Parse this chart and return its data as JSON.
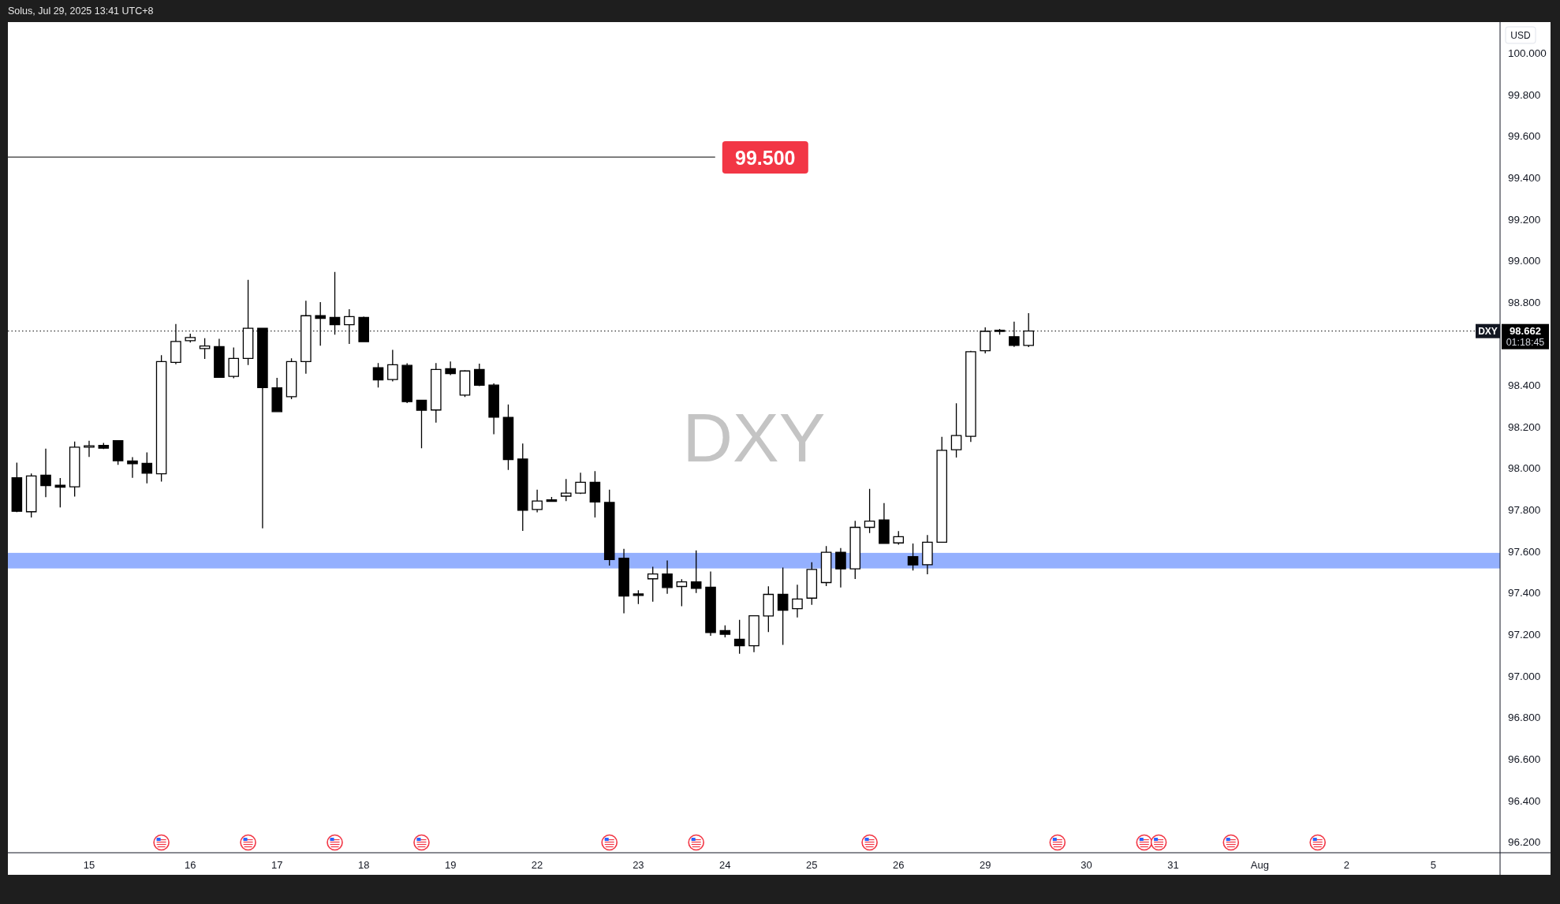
{
  "chart_data": {
    "type": "candlestick",
    "title": "DXY",
    "ylabel": "USD",
    "color": "#000000",
    "categories": [
      null,
      null,
      null,
      null,
      null,
      "15",
      null,
      null,
      null,
      null,
      null,
      null,
      "16",
      null,
      null,
      null,
      null,
      null,
      "17",
      null,
      null,
      null,
      null,
      null,
      "18",
      null,
      null,
      null,
      null,
      null,
      "19",
      null,
      null,
      null,
      null,
      null,
      "22",
      null,
      null,
      null,
      null,
      null,
      null,
      "23",
      null,
      null,
      null,
      null,
      null,
      "24",
      null,
      null,
      null,
      null,
      null,
      "25",
      null,
      null,
      null,
      null,
      null,
      "26",
      null,
      null,
      null,
      null,
      null,
      "29",
      null,
      null,
      null,
      null,
      null,
      null,
      "30",
      null,
      null,
      null,
      null,
      null,
      "31",
      null,
      null,
      null,
      null,
      null,
      "Aug",
      null,
      null,
      null,
      null,
      null,
      "2",
      null,
      null,
      null,
      null,
      null,
      "5",
      null,
      null,
      null,
      null
    ],
    "ohlc": [
      [
        97.956,
        98.028,
        97.79,
        97.794
      ],
      [
        97.792,
        97.976,
        97.764,
        97.964
      ],
      [
        97.968,
        98.096,
        97.862,
        97.918
      ],
      [
        97.92,
        97.954,
        97.813,
        97.91
      ],
      [
        97.912,
        98.13,
        97.865,
        98.103
      ],
      [
        98.103,
        98.134,
        98.056,
        98.11
      ],
      [
        98.111,
        98.123,
        98.094,
        98.098
      ],
      [
        98.134,
        98.134,
        98.018,
        98.038
      ],
      [
        98.036,
        98.055,
        97.955,
        98.023
      ],
      [
        98.025,
        98.078,
        97.929,
        97.978
      ],
      [
        97.975,
        98.546,
        97.937,
        98.515
      ],
      [
        98.511,
        98.696,
        98.502,
        98.612
      ],
      [
        98.616,
        98.65,
        98.607,
        98.631
      ],
      [
        98.578,
        98.628,
        98.528,
        98.59
      ],
      [
        98.587,
        98.625,
        98.437,
        98.439
      ],
      [
        98.444,
        98.583,
        98.435,
        98.53
      ],
      [
        98.53,
        98.909,
        98.499,
        98.676
      ],
      [
        98.676,
        98.676,
        97.712,
        98.39
      ],
      [
        98.389,
        98.437,
        98.274,
        98.274
      ],
      [
        98.346,
        98.531,
        98.334,
        98.515
      ],
      [
        98.515,
        98.808,
        98.457,
        98.736
      ],
      [
        98.736,
        98.801,
        98.592,
        98.723
      ],
      [
        98.728,
        98.947,
        98.645,
        98.693
      ],
      [
        98.693,
        98.767,
        98.6,
        98.732
      ],
      [
        98.728,
        98.732,
        98.611,
        98.611
      ],
      [
        98.486,
        98.508,
        98.39,
        98.427
      ],
      [
        98.429,
        98.572,
        98.42,
        98.5
      ],
      [
        98.497,
        98.507,
        98.315,
        98.322
      ],
      [
        98.329,
        98.331,
        98.098,
        98.281
      ],
      [
        98.282,
        98.508,
        98.221,
        98.477
      ],
      [
        98.481,
        98.516,
        98.45,
        98.457
      ],
      [
        98.354,
        98.474,
        98.345,
        98.47
      ],
      [
        98.477,
        98.505,
        98.397,
        98.401
      ],
      [
        98.402,
        98.41,
        98.165,
        98.247
      ],
      [
        98.246,
        98.309,
        97.993,
        98.043
      ],
      [
        98.046,
        98.121,
        97.7,
        97.799
      ],
      [
        97.803,
        97.898,
        97.789,
        97.844
      ],
      [
        97.849,
        97.863,
        97.839,
        97.842
      ],
      [
        97.867,
        97.95,
        97.843,
        97.882
      ],
      [
        97.882,
        97.98,
        97.877,
        97.934
      ],
      [
        97.934,
        97.988,
        97.764,
        97.839
      ],
      [
        97.837,
        97.898,
        97.533,
        97.562
      ],
      [
        97.568,
        97.613,
        97.303,
        97.386
      ],
      [
        97.396,
        97.414,
        97.348,
        97.389
      ],
      [
        97.469,
        97.527,
        97.359,
        97.492
      ],
      [
        97.492,
        97.557,
        97.397,
        97.427
      ],
      [
        97.432,
        97.467,
        97.337,
        97.454
      ],
      [
        97.454,
        97.606,
        97.401,
        97.423
      ],
      [
        97.429,
        97.504,
        97.195,
        97.21
      ],
      [
        97.22,
        97.245,
        97.187,
        97.202
      ],
      [
        97.178,
        97.272,
        97.108,
        97.147
      ],
      [
        97.147,
        97.291,
        97.116,
        97.291
      ],
      [
        97.29,
        97.433,
        97.213,
        97.394
      ],
      [
        97.394,
        97.523,
        97.151,
        97.318
      ],
      [
        97.325,
        97.441,
        97.283,
        97.372
      ],
      [
        97.376,
        97.549,
        97.344,
        97.514
      ],
      [
        97.451,
        97.627,
        97.434,
        97.597
      ],
      [
        97.597,
        97.617,
        97.427,
        97.517
      ],
      [
        97.517,
        97.748,
        97.468,
        97.717
      ],
      [
        97.717,
        97.902,
        97.689,
        97.747
      ],
      [
        97.752,
        97.834,
        97.637,
        97.64
      ],
      [
        97.642,
        97.699,
        97.633,
        97.672
      ],
      [
        97.576,
        97.639,
        97.509,
        97.536
      ],
      [
        97.537,
        97.68,
        97.491,
        97.645
      ],
      [
        97.645,
        98.153,
        97.645,
        98.088
      ],
      [
        98.091,
        98.314,
        98.053,
        98.159
      ],
      [
        98.155,
        98.567,
        98.128,
        98.563
      ],
      [
        98.567,
        98.68,
        98.555,
        98.661
      ],
      [
        98.666,
        98.672,
        98.645,
        98.661
      ],
      [
        98.635,
        98.707,
        98.586,
        98.593
      ],
      [
        98.593,
        98.748,
        98.585,
        98.662
      ],
      null,
      null,
      null,
      null,
      null,
      null,
      null,
      null,
      null,
      null,
      null,
      null,
      null,
      null,
      null,
      null,
      null,
      null,
      null,
      null,
      null,
      null,
      null,
      null,
      null,
      null,
      null,
      null,
      null,
      null,
      null,
      null
    ],
    "ylim": [
      96.15,
      100.15
    ],
    "yticks": [
      {
        "value": 96.2,
        "label": "96.200"
      },
      {
        "value": 96.4,
        "label": "96.400"
      },
      {
        "value": 96.6,
        "label": "96.600"
      },
      {
        "value": 96.8,
        "label": "96.800"
      },
      {
        "value": 97,
        "label": "97.000"
      },
      {
        "value": 97.2,
        "label": "97.200"
      },
      {
        "value": 97.4,
        "label": "97.400"
      },
      {
        "value": 97.6,
        "label": "97.600"
      },
      {
        "value": 97.8,
        "label": "97.800"
      },
      {
        "value": 98,
        "label": "98.000"
      },
      {
        "value": 98.2,
        "label": "98.200"
      },
      {
        "value": 98.4,
        "label": "98.400"
      },
      {
        "value": 98.8,
        "label": "98.800"
      },
      {
        "value": 99,
        "label": "99.000"
      },
      {
        "value": 99.2,
        "label": "99.200"
      },
      {
        "value": 99.4,
        "label": "99.400"
      },
      {
        "value": 99.6,
        "label": "99.600"
      },
      {
        "value": 99.8,
        "label": "99.800"
      },
      {
        "value": 100,
        "label": "100.000"
      }
    ],
    "ref_lines": [
      {
        "axis": "y",
        "value": 99.5,
        "label": "99.500",
        "color": "#000000",
        "line_style": "solid"
      },
      {
        "axis": "y",
        "value": 98.662,
        "label": "98.662",
        "color": "#000000",
        "line_style": "dotted"
      }
    ],
    "bands": [
      {
        "axis": "y",
        "from": 97.519,
        "to": 97.594,
        "color": "#94b0fe"
      }
    ],
    "annotations": [
      "Solus, Jul 29, 2025 13:41 UTC+8",
      {
        "text": "DXY",
        "y": 98.662
      },
      "01:18:45"
    ]
  }
}
